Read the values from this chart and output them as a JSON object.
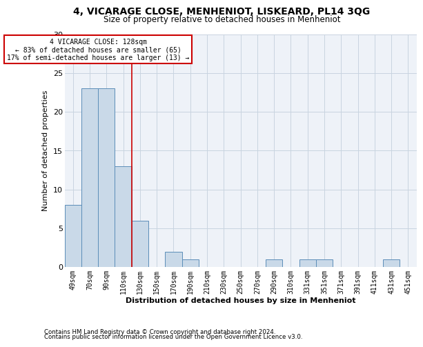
{
  "title": "4, VICARAGE CLOSE, MENHENIOT, LISKEARD, PL14 3QG",
  "subtitle": "Size of property relative to detached houses in Menheniot",
  "xlabel": "Distribution of detached houses by size in Menheniot",
  "ylabel": "Number of detached properties",
  "categories": [
    "49sqm",
    "70sqm",
    "90sqm",
    "110sqm",
    "130sqm",
    "150sqm",
    "170sqm",
    "190sqm",
    "210sqm",
    "230sqm",
    "250sqm",
    "270sqm",
    "290sqm",
    "310sqm",
    "331sqm",
    "351sqm",
    "371sqm",
    "391sqm",
    "411sqm",
    "431sqm",
    "451sqm"
  ],
  "values": [
    8,
    23,
    23,
    13,
    6,
    0,
    2,
    1,
    0,
    0,
    0,
    0,
    1,
    0,
    1,
    1,
    0,
    0,
    0,
    1,
    0
  ],
  "bar_color": "#c9d9e8",
  "bar_edge_color": "#5b8db8",
  "grid_color": "#c8d4e0",
  "background_color": "#eef2f8",
  "vline_x_index": 3.5,
  "vline_color": "#cc0000",
  "annotation_text": "4 VICARAGE CLOSE: 128sqm\n← 83% of detached houses are smaller (65)\n17% of semi-detached houses are larger (13) →",
  "annotation_box_color": "#ffffff",
  "annotation_box_edge": "#cc0000",
  "ylim": [
    0,
    30
  ],
  "yticks": [
    0,
    5,
    10,
    15,
    20,
    25,
    30
  ],
  "footer1": "Contains HM Land Registry data © Crown copyright and database right 2024.",
  "footer2": "Contains public sector information licensed under the Open Government Licence v3.0."
}
